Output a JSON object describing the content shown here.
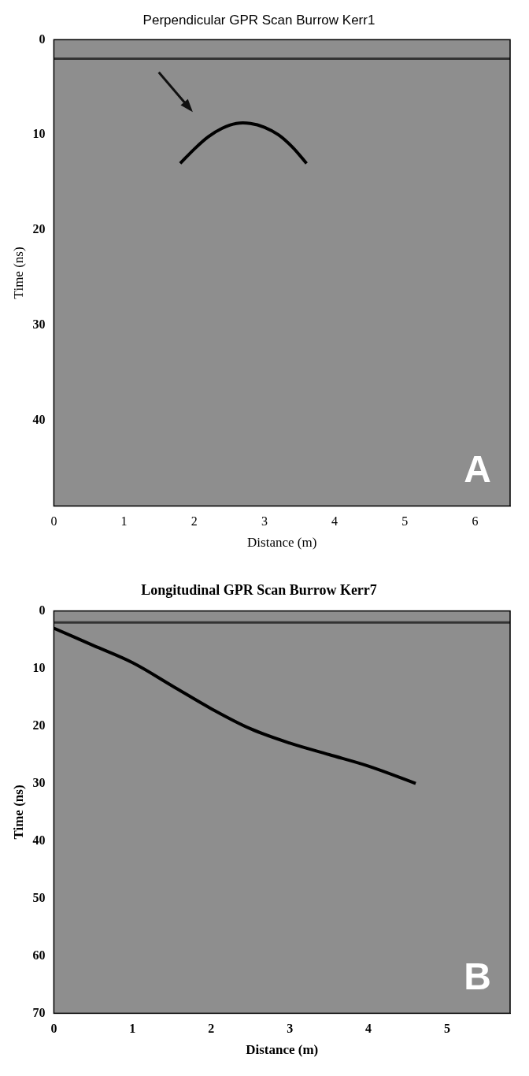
{
  "chart_data": [
    {
      "type": "line",
      "title": "Perpendicular GPR Scan Burrow Kerr1",
      "x_label": "Distance (m)",
      "y_label": "Time (ns)",
      "xlim": [
        0,
        6.5
      ],
      "xticks": [
        0,
        1,
        2,
        3,
        4,
        5,
        6
      ],
      "ylim": [
        0,
        49
      ],
      "yticks": [
        0,
        10,
        20,
        30,
        40
      ],
      "grid": false,
      "marker": "none",
      "annotations": [
        {
          "text": "A"
        }
      ],
      "series": [
        {
          "x": [
            0,
            6.5
          ],
          "values": [
            2,
            2
          ],
          "color": "#333333"
        },
        {
          "x": [
            1.8,
            2.0,
            2.2,
            2.4,
            2.6,
            2.8,
            3.0,
            3.2,
            3.4,
            3.6
          ],
          "values": [
            13,
            11.5,
            10.2,
            9.3,
            8.8,
            8.8,
            9.2,
            10,
            11.3,
            13
          ],
          "color": "#000000"
        }
      ]
    },
    {
      "type": "line",
      "title": "Longitudinal GPR Scan Burrow Kerr7",
      "x_label": "Distance (m)",
      "y_label": "Time (ns)",
      "xlim": [
        0,
        5.8
      ],
      "xticks": [
        0,
        1,
        2,
        3,
        4,
        5
      ],
      "ylim": [
        0,
        70
      ],
      "yticks": [
        0,
        10,
        20,
        30,
        40,
        50,
        60,
        70
      ],
      "grid": false,
      "marker": "none",
      "annotations": [
        {
          "text": "B"
        }
      ],
      "series": [
        {
          "x": [
            0,
            5.8
          ],
          "values": [
            2,
            2
          ],
          "color": "#333333"
        },
        {
          "x": [
            0,
            0.5,
            1,
            1.5,
            2,
            2.5,
            3,
            3.5,
            4,
            4.6
          ],
          "values": [
            3,
            6,
            9,
            13,
            17,
            20.5,
            23,
            25,
            27,
            30
          ],
          "color": "#000000"
        }
      ]
    }
  ]
}
